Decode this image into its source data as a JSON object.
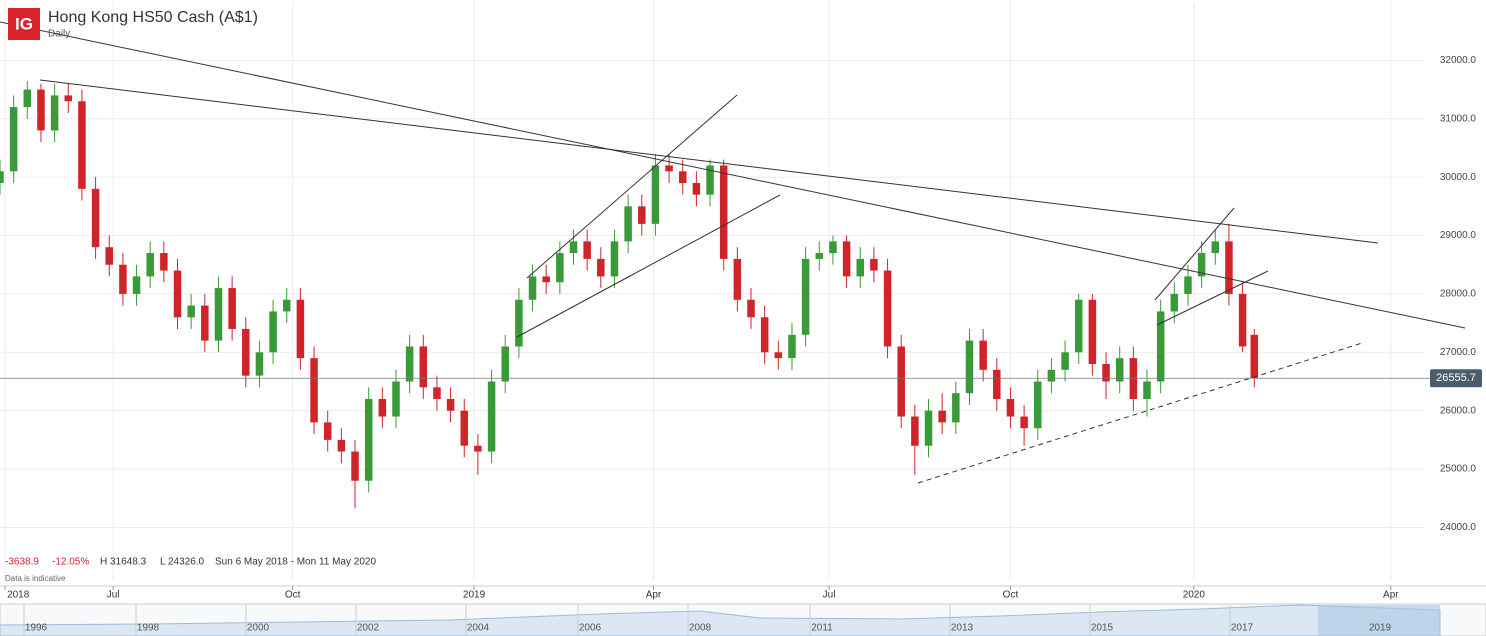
{
  "chart_data": {
    "type": "candlestick",
    "title": "Hong Kong HS50 Cash (A$1)",
    "subtitle": "Daily",
    "logo": "IG",
    "stats": {
      "change": "-3638.9",
      "change_pct": "-12.05%",
      "high": "H 31648.3",
      "low": "L 24326.0",
      "range": "Sun 6 May 2018 - Mon 11 May 2020",
      "note": "Data is indicative"
    },
    "up_color": "#3a9a3a",
    "down_color": "#d0242b",
    "last_price": 26555.7,
    "xlim": [
      0,
      730
    ],
    "xticks": [
      {
        "value": 2.6,
        "label": "2018"
      },
      {
        "value": 58,
        "label": "Jul"
      },
      {
        "value": 150,
        "label": "Oct"
      },
      {
        "value": 243,
        "label": "2019"
      },
      {
        "value": 335,
        "label": "Apr"
      },
      {
        "value": 425,
        "label": "Jul"
      },
      {
        "value": 518,
        "label": "Oct"
      },
      {
        "value": 612,
        "label": "2020"
      },
      {
        "value": 713,
        "label": "Apr"
      }
    ],
    "ylim": [
      23100,
      33000
    ],
    "yticks": [
      {
        "value": 24000,
        "label": "24000.0"
      },
      {
        "value": 25000,
        "label": "25000.0"
      },
      {
        "value": 26000,
        "label": "26000.0"
      },
      {
        "value": 27000,
        "label": "27000.0"
      },
      {
        "value": 28000,
        "label": "28000.0"
      },
      {
        "value": 29000,
        "label": "29000.0"
      },
      {
        "value": 30000,
        "label": "30000.0"
      },
      {
        "value": 31000,
        "label": "31000.0"
      },
      {
        "value": 32000,
        "label": "32000.0"
      }
    ],
    "grid": true,
    "navigator": [
      "1996",
      "1998",
      "2000",
      "2002",
      "2004",
      "2006",
      "2008",
      "2011",
      "2013",
      "2015",
      "2017",
      "2019"
    ],
    "x": [
      0,
      7,
      14,
      21,
      28,
      35,
      42,
      49,
      56,
      63,
      70,
      77,
      84,
      91,
      98,
      105,
      112,
      119,
      126,
      133,
      140,
      147,
      154,
      161,
      168,
      175,
      182,
      189,
      196,
      203,
      210,
      217,
      224,
      231,
      238,
      245,
      252,
      259,
      266,
      273,
      280,
      287,
      294,
      301,
      308,
      315,
      322,
      329,
      336,
      343,
      350,
      357,
      364,
      371,
      378,
      385,
      392,
      399,
      406,
      413,
      420,
      427,
      434,
      441,
      448,
      455,
      462,
      469,
      476,
      483,
      490,
      497,
      504,
      511,
      518,
      525,
      532,
      539,
      546,
      553,
      560,
      567,
      574,
      581,
      588,
      595,
      602,
      609,
      616,
      623,
      630,
      637,
      643
    ],
    "open": [
      29900,
      30100,
      31200,
      31500,
      30800,
      31400,
      31300,
      29800,
      28800,
      28500,
      28000,
      28300,
      28700,
      28400,
      27600,
      27800,
      27200,
      28100,
      27400,
      26600,
      27000,
      27700,
      27900,
      26900,
      25800,
      25500,
      25300,
      24800,
      26200,
      25900,
      26500,
      27100,
      26400,
      26200,
      26000,
      25400,
      25300,
      26500,
      27100,
      27900,
      28300,
      28200,
      28700,
      28900,
      28600,
      28300,
      28900,
      29500,
      29200,
      30200,
      30100,
      29900,
      29700,
      30200,
      28600,
      27900,
      27600,
      27000,
      26900,
      27300,
      28600,
      28700,
      28900,
      28300,
      28600,
      28400,
      27100,
      25900,
      25400,
      26000,
      25800,
      26300,
      27200,
      26700,
      26200,
      25900,
      25700,
      26500,
      26700,
      27000,
      27900,
      26800,
      26500,
      26900,
      26200,
      26500,
      27700,
      28000,
      28300,
      28700,
      28900,
      28000,
      27300
    ],
    "high": [
      30300,
      31400,
      31648.3,
      31600,
      31600,
      31600,
      31500,
      30000,
      29000,
      28700,
      28500,
      28900,
      28900,
      28600,
      28000,
      28000,
      28300,
      28300,
      27600,
      27200,
      27900,
      28100,
      28100,
      27100,
      26000,
      25700,
      25500,
      26400,
      26400,
      26700,
      27300,
      27300,
      26600,
      26400,
      26200,
      25600,
      26700,
      27300,
      28100,
      28500,
      28500,
      28900,
      29100,
      29100,
      28800,
      29100,
      29700,
      29700,
      30400,
      30400,
      30300,
      30100,
      30300,
      30300,
      28800,
      28100,
      27800,
      27200,
      27500,
      28800,
      28900,
      29000,
      29000,
      28800,
      28800,
      28600,
      27300,
      26100,
      26200,
      26300,
      26500,
      27400,
      27400,
      26900,
      26400,
      26100,
      26700,
      26900,
      27200,
      28000,
      28000,
      27000,
      27100,
      27100,
      26700,
      27900,
      28200,
      28500,
      28900,
      29100,
      29200,
      28200,
      27400
    ],
    "low": [
      29700,
      29900,
      31000,
      30600,
      30600,
      31100,
      29600,
      28600,
      28300,
      27800,
      27800,
      28100,
      28200,
      27400,
      27400,
      27000,
      27000,
      27200,
      26400,
      26400,
      26800,
      27500,
      26700,
      25600,
      25300,
      25100,
      24326,
      24600,
      25700,
      25700,
      26300,
      26200,
      26000,
      25800,
      25200,
      24900,
      25100,
      26300,
      26900,
      27700,
      28000,
      28000,
      28500,
      28400,
      28100,
      28100,
      28700,
      29000,
      29000,
      29900,
      29700,
      29500,
      29500,
      28400,
      27700,
      27400,
      26800,
      26700,
      26700,
      27100,
      28400,
      28500,
      28100,
      28100,
      28200,
      26900,
      25700,
      24900,
      25200,
      25600,
      25600,
      26100,
      26500,
      26000,
      25700,
      25400,
      25500,
      26300,
      26500,
      26800,
      26600,
      26200,
      26300,
      26000,
      25900,
      26300,
      27500,
      27800,
      28100,
      28500,
      27800,
      27000,
      26400
    ],
    "close": [
      30100,
      31200,
      31500,
      30800,
      31400,
      31300,
      29800,
      28800,
      28500,
      28000,
      28300,
      28700,
      28400,
      27600,
      27800,
      27200,
      28100,
      27400,
      26600,
      27000,
      27700,
      27900,
      26900,
      25800,
      25500,
      25300,
      24800,
      26200,
      25900,
      26500,
      27100,
      26400,
      26200,
      26000,
      25400,
      25300,
      26500,
      27100,
      27900,
      28300,
      28200,
      28700,
      28900,
      28600,
      28300,
      28900,
      29500,
      29200,
      30200,
      30100,
      29900,
      29700,
      30200,
      28600,
      27900,
      27600,
      27000,
      26900,
      27300,
      28600,
      28700,
      28900,
      28300,
      28600,
      28400,
      27100,
      25900,
      25400,
      26000,
      25800,
      26300,
      27200,
      26700,
      26200,
      25900,
      25700,
      26500,
      26700,
      27000,
      27900,
      26800,
      26500,
      26900,
      26200,
      26500,
      27700,
      28000,
      28300,
      28700,
      28900,
      28000,
      27100,
      26555.7
    ]
  }
}
